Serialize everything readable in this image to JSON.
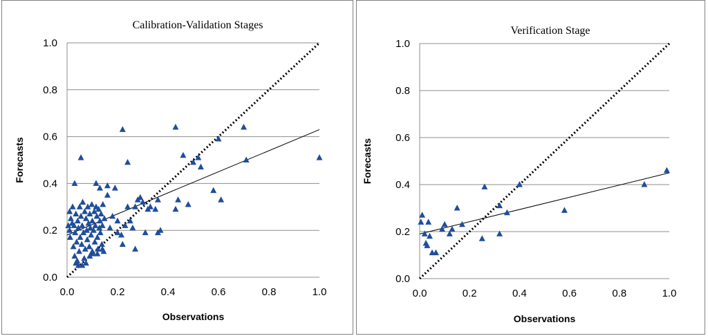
{
  "chart_data": [
    {
      "type": "scatter",
      "title": "Calibration-Validation Stages",
      "xlabel": "Observations",
      "ylabel": "Forecasts",
      "xlim": [
        0,
        1
      ],
      "ylim": [
        0,
        1
      ],
      "x_ticks": [
        "0.0",
        "0.2",
        "0.4",
        "0.6",
        "0.8",
        "1.0"
      ],
      "y_ticks": [
        "0.0",
        "0.2",
        "0.4",
        "0.6",
        "0.8",
        "1.0"
      ],
      "grid": "horizontal",
      "marker": "triangle",
      "marker_color": "#1f4e9a",
      "diagonal": {
        "from": [
          0,
          0
        ],
        "to": [
          1,
          1
        ],
        "style": "dotted"
      },
      "trendline": {
        "from": [
          0,
          0.18
        ],
        "to": [
          1,
          0.63
        ]
      },
      "points": [
        [
          0.005,
          0.22
        ],
        [
          0.01,
          0.2
        ],
        [
          0.012,
          0.17
        ],
        [
          0.015,
          0.25
        ],
        [
          0.02,
          0.23
        ],
        [
          0.022,
          0.3
        ],
        [
          0.025,
          0.13
        ],
        [
          0.028,
          0.22
        ],
        [
          0.03,
          0.09
        ],
        [
          0.032,
          0.19
        ],
        [
          0.035,
          0.27
        ],
        [
          0.038,
          0.15
        ],
        [
          0.04,
          0.07
        ],
        [
          0.042,
          0.24
        ],
        [
          0.045,
          0.21
        ],
        [
          0.048,
          0.11
        ],
        [
          0.05,
          0.3
        ],
        [
          0.052,
          0.17
        ],
        [
          0.055,
          0.26
        ],
        [
          0.058,
          0.14
        ],
        [
          0.06,
          0.22
        ],
        [
          0.062,
          0.32
        ],
        [
          0.065,
          0.19
        ],
        [
          0.068,
          0.08
        ],
        [
          0.07,
          0.28
        ],
        [
          0.072,
          0.12
        ],
        [
          0.075,
          0.25
        ],
        [
          0.078,
          0.2
        ],
        [
          0.08,
          0.16
        ],
        [
          0.082,
          0.3
        ],
        [
          0.085,
          0.23
        ],
        [
          0.088,
          0.13
        ],
        [
          0.09,
          0.27
        ],
        [
          0.092,
          0.21
        ],
        [
          0.095,
          0.18
        ],
        [
          0.098,
          0.31
        ],
        [
          0.1,
          0.24
        ],
        [
          0.102,
          0.1
        ],
        [
          0.105,
          0.2
        ],
        [
          0.108,
          0.28
        ],
        [
          0.11,
          0.15
        ],
        [
          0.112,
          0.22
        ],
        [
          0.115,
          0.3
        ],
        [
          0.118,
          0.26
        ],
        [
          0.12,
          0.17
        ],
        [
          0.122,
          0.12
        ],
        [
          0.125,
          0.29
        ],
        [
          0.128,
          0.21
        ],
        [
          0.13,
          0.24
        ],
        [
          0.132,
          0.19
        ],
        [
          0.135,
          0.27
        ],
        [
          0.138,
          0.14
        ],
        [
          0.14,
          0.22
        ],
        [
          0.142,
          0.31
        ],
        [
          0.145,
          0.11
        ],
        [
          0.148,
          0.25
        ],
        [
          0.03,
          0.4
        ],
        [
          0.01,
          0.28
        ],
        [
          0.035,
          0.06
        ],
        [
          0.045,
          0.05
        ],
        [
          0.06,
          0.05
        ],
        [
          0.075,
          0.06
        ],
        [
          0.09,
          0.09
        ],
        [
          0.1,
          0.11
        ],
        [
          0.12,
          0.1
        ],
        [
          0.14,
          0.12
        ],
        [
          0.055,
          0.51
        ],
        [
          0.115,
          0.4
        ],
        [
          0.13,
          0.38
        ],
        [
          0.16,
          0.39
        ],
        [
          0.16,
          0.35
        ],
        [
          0.19,
          0.38
        ],
        [
          0.18,
          0.26
        ],
        [
          0.17,
          0.21
        ],
        [
          0.2,
          0.24
        ],
        [
          0.2,
          0.19
        ],
        [
          0.215,
          0.18
        ],
        [
          0.22,
          0.14
        ],
        [
          0.23,
          0.22
        ],
        [
          0.24,
          0.3
        ],
        [
          0.25,
          0.24
        ],
        [
          0.26,
          0.21
        ],
        [
          0.27,
          0.12
        ],
        [
          0.27,
          0.3
        ],
        [
          0.28,
          0.33
        ],
        [
          0.29,
          0.34
        ],
        [
          0.3,
          0.32
        ],
        [
          0.31,
          0.19
        ],
        [
          0.32,
          0.29
        ],
        [
          0.33,
          0.3
        ],
        [
          0.35,
          0.29
        ],
        [
          0.36,
          0.33
        ],
        [
          0.36,
          0.19
        ],
        [
          0.37,
          0.2
        ],
        [
          0.43,
          0.29
        ],
        [
          0.44,
          0.33
        ],
        [
          0.48,
          0.31
        ],
        [
          0.46,
          0.52
        ],
        [
          0.5,
          0.49
        ],
        [
          0.52,
          0.51
        ],
        [
          0.53,
          0.47
        ],
        [
          0.58,
          0.37
        ],
        [
          0.6,
          0.59
        ],
        [
          0.61,
          0.33
        ],
        [
          0.71,
          0.5
        ],
        [
          0.7,
          0.64
        ],
        [
          0.43,
          0.64
        ],
        [
          0.22,
          0.63
        ],
        [
          0.24,
          0.49
        ],
        [
          1.0,
          0.51
        ]
      ]
    },
    {
      "type": "scatter",
      "title": "Verification Stage",
      "xlabel": "Observations",
      "ylabel": "Forecasts",
      "xlim": [
        0,
        1
      ],
      "ylim": [
        0,
        1
      ],
      "x_ticks": [
        "0.0",
        "0.2",
        "0.4",
        "0.6",
        "0.8",
        "1.0"
      ],
      "y_ticks": [
        "0.0",
        "0.2",
        "0.4",
        "0.6",
        "0.8",
        "1.0"
      ],
      "grid": "horizontal",
      "marker": "triangle",
      "marker_color": "#1f4e9a",
      "diagonal": {
        "from": [
          0,
          0
        ],
        "to": [
          1,
          1
        ],
        "style": "dotted"
      },
      "trendline": {
        "from": [
          0,
          0.19
        ],
        "to": [
          1,
          0.45
        ]
      },
      "points": [
        [
          0.005,
          0.24
        ],
        [
          0.01,
          0.27
        ],
        [
          0.02,
          0.19
        ],
        [
          0.025,
          0.15
        ],
        [
          0.03,
          0.14
        ],
        [
          0.035,
          0.24
        ],
        [
          0.04,
          0.18
        ],
        [
          0.05,
          0.11
        ],
        [
          0.065,
          0.11
        ],
        [
          0.09,
          0.21
        ],
        [
          0.1,
          0.23
        ],
        [
          0.12,
          0.19
        ],
        [
          0.13,
          0.21
        ],
        [
          0.15,
          0.3
        ],
        [
          0.17,
          0.23
        ],
        [
          0.25,
          0.17
        ],
        [
          0.26,
          0.39
        ],
        [
          0.32,
          0.19
        ],
        [
          0.32,
          0.31
        ],
        [
          0.35,
          0.28
        ],
        [
          0.4,
          0.4
        ],
        [
          0.58,
          0.29
        ],
        [
          0.9,
          0.4
        ],
        [
          0.99,
          0.46
        ]
      ]
    }
  ]
}
